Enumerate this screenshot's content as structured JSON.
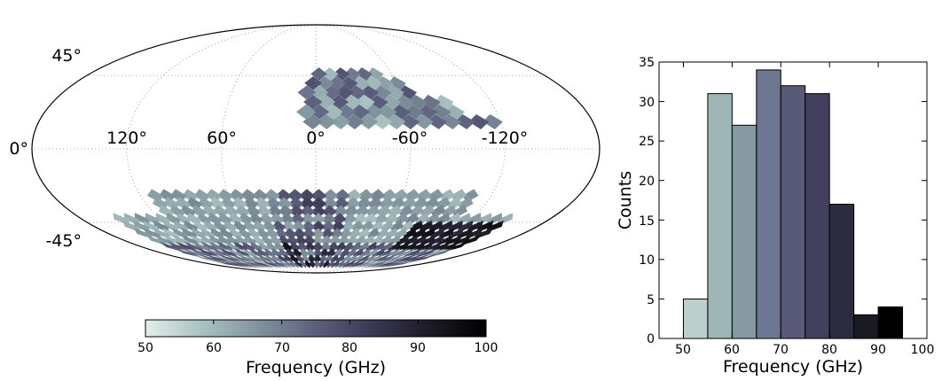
{
  "chart_data": [
    {
      "type": "heatmap",
      "projection": "mollweide",
      "lat_labels": [
        "45°",
        "0°",
        "-45°"
      ],
      "lon_labels": [
        "120°",
        "60°",
        "0°",
        "-60°",
        "-120°"
      ],
      "grid": true,
      "colorbar": {
        "label": "Frequency (GHz)",
        "min": 50,
        "max": 100,
        "ticks": [
          "50",
          "60",
          "70",
          "80",
          "90",
          "100"
        ],
        "colormap": [
          "#e2eeeb",
          "#a9c2c1",
          "#7f939c",
          "#5c5f7d",
          "#3a3854",
          "#1c1c26",
          "#000000"
        ]
      },
      "regions": [
        {
          "lon_range": [
            -115,
            10
          ],
          "lat_range": [
            12,
            50
          ],
          "value_range": [
            58,
            78
          ]
        },
        {
          "lon_range": [
            -150,
            150
          ],
          "lat_range": [
            -80,
            -28
          ],
          "value_range": [
            55,
            98
          ]
        }
      ]
    },
    {
      "type": "bar",
      "categories": [
        "50-55",
        "55-60",
        "60-65",
        "65-70",
        "70-75",
        "75-80",
        "80-85",
        "85-90",
        "90-95"
      ],
      "bin_edges": [
        50,
        55,
        60,
        65,
        70,
        75,
        80,
        85,
        90,
        95
      ],
      "values": [
        5,
        31,
        27,
        34,
        32,
        31,
        17,
        3,
        4
      ],
      "bar_colors": [
        "#bccfcc",
        "#9fb6b7",
        "#8799a0",
        "#6d7790",
        "#585a78",
        "#42405e",
        "#2d2b3f",
        "#1a1a22",
        "#000000"
      ],
      "xlabel": "Frequency (GHz)",
      "ylabel": "Counts",
      "xlim": [
        45,
        100
      ],
      "ylim": [
        0,
        35
      ],
      "xticks": [
        "50",
        "60",
        "70",
        "80",
        "90",
        "100"
      ],
      "yticks": [
        "0",
        "5",
        "10",
        "15",
        "20",
        "25",
        "30",
        "35"
      ]
    }
  ]
}
